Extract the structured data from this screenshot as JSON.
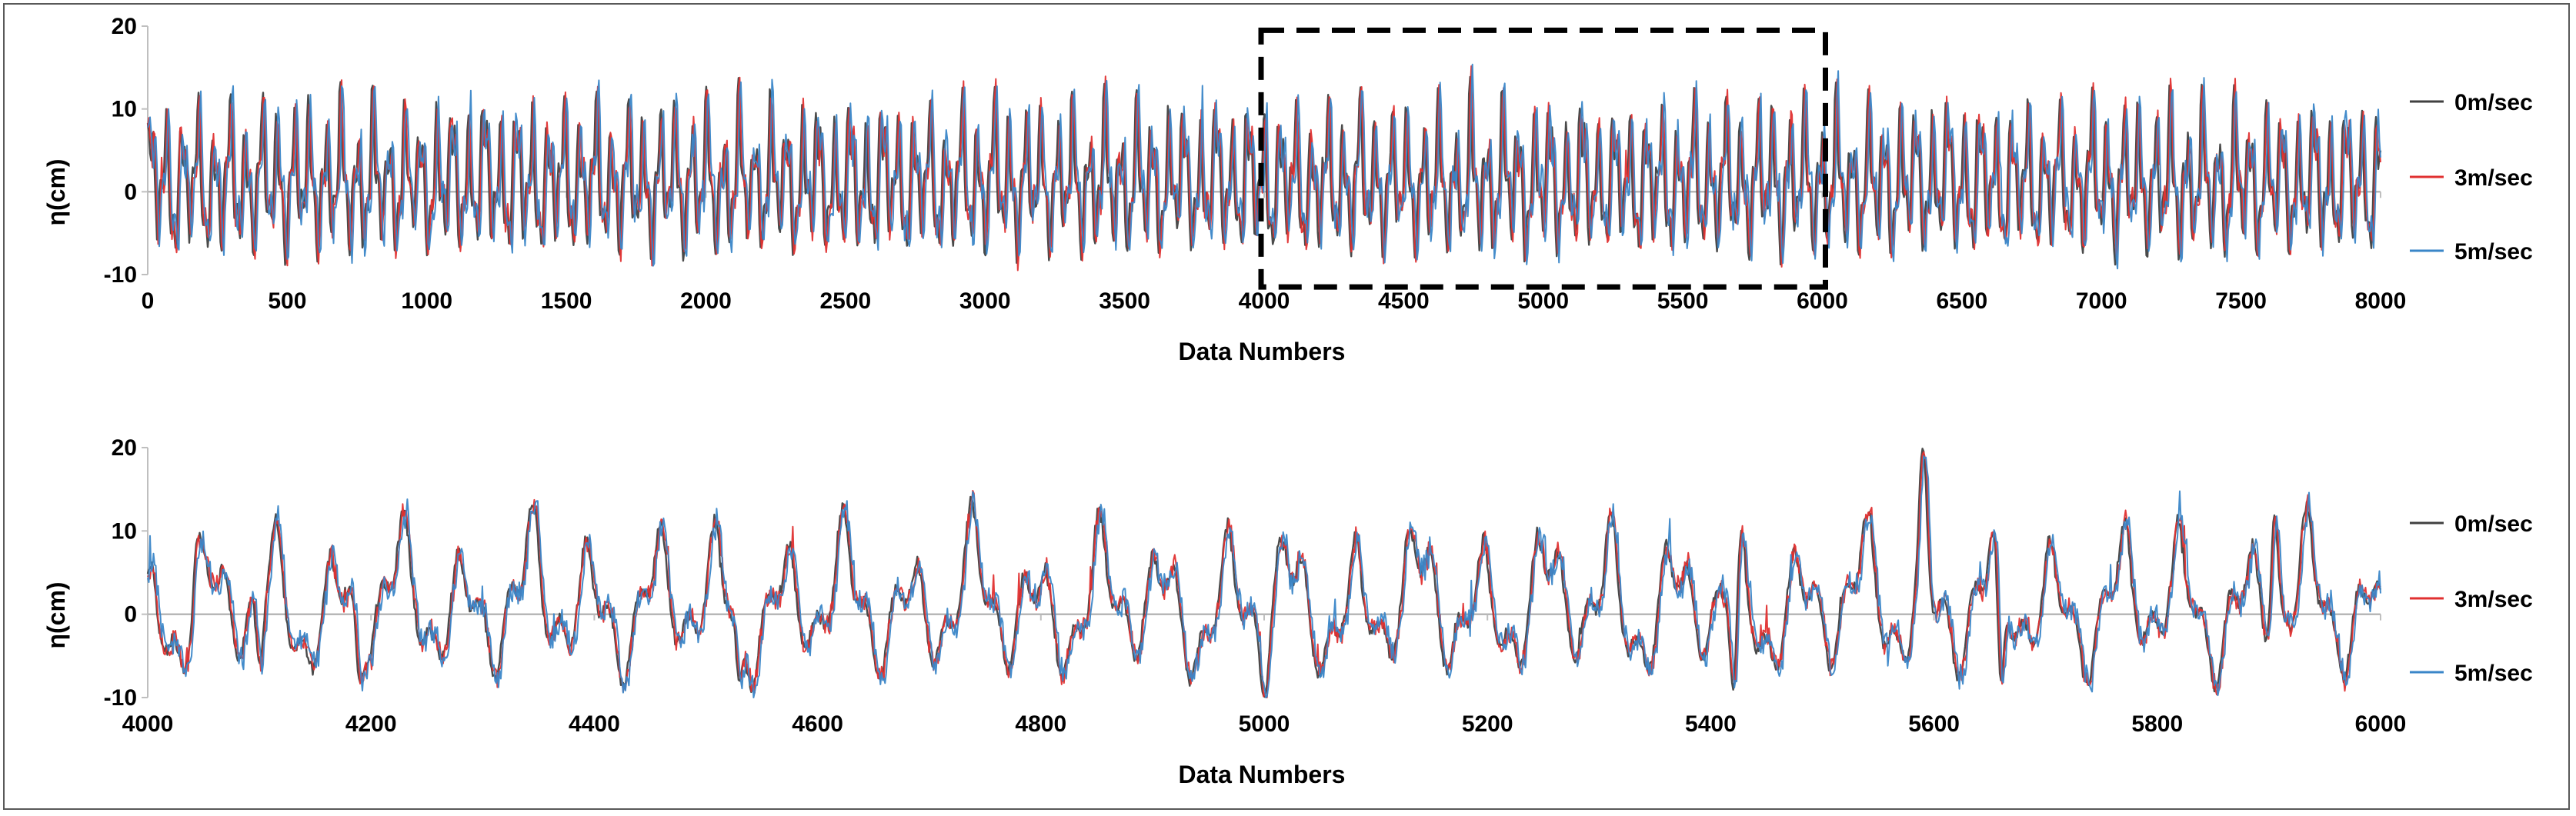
{
  "chart_data": [
    {
      "type": "line",
      "xlabel": "Data Numbers",
      "ylabel": "η(cm)",
      "xlim": [
        0,
        8000
      ],
      "ylim": [
        -10,
        20
      ],
      "xticks": [
        0,
        500,
        1000,
        1500,
        2000,
        2500,
        3000,
        3500,
        4000,
        4500,
        5000,
        5500,
        6000,
        6500,
        7000,
        7500,
        8000
      ],
      "yticks": [
        -10,
        0,
        10,
        20
      ],
      "legend_position": "right",
      "highlight_box": {
        "x": [
          4000,
          6000
        ],
        "y": [
          -11.5,
          19.5
        ],
        "style": "dashed"
      },
      "series": [
        {
          "name": "0m/sec",
          "color": "#404040"
        },
        {
          "name": "3m/sec",
          "color": "#e03030"
        },
        {
          "name": "5m/sec",
          "color": "#3a86c8"
        }
      ]
    },
    {
      "type": "line",
      "xlabel": "Data Numbers",
      "ylabel": "η(cm)",
      "xlim": [
        4000,
        6000
      ],
      "ylim": [
        -10,
        20
      ],
      "xticks": [
        4000,
        4200,
        4400,
        4600,
        4800,
        5000,
        5200,
        5400,
        5600,
        5800,
        6000
      ],
      "yticks": [
        -10,
        0,
        10,
        20
      ],
      "legend_position": "right",
      "series": [
        {
          "name": "0m/sec",
          "color": "#404040"
        },
        {
          "name": "3m/sec",
          "color": "#e03030"
        },
        {
          "name": "5m/sec",
          "color": "#3a86c8"
        }
      ],
      "key_points": [
        {
          "x": 4000,
          "y": 5
        },
        {
          "x": 4045,
          "y": 9
        },
        {
          "x": 4100,
          "y": -6
        },
        {
          "x": 4190,
          "y": -8
        },
        {
          "x": 4345,
          "y": 13
        },
        {
          "x": 4530,
          "y": -8
        },
        {
          "x": 5000,
          "y": -10
        },
        {
          "x": 5310,
          "y": 12
        },
        {
          "x": 5420,
          "y": -9
        },
        {
          "x": 5590,
          "y": 20
        },
        {
          "x": 5660,
          "y": -8
        },
        {
          "x": 5905,
          "y": 12
        },
        {
          "x": 6000,
          "y": 3
        }
      ]
    }
  ]
}
